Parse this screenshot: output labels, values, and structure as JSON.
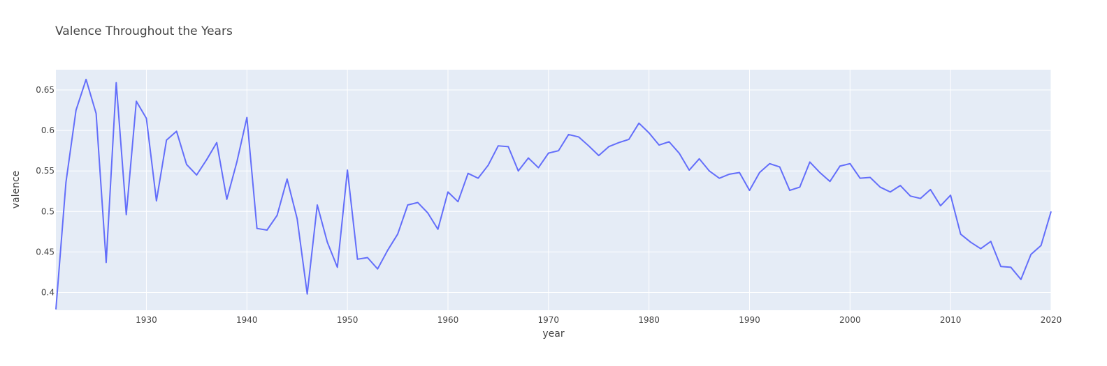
{
  "chart_data": {
    "type": "line",
    "title": "Valence Throughout the Years",
    "xlabel": "year",
    "ylabel": "valence",
    "xlim": [
      1921,
      2020
    ],
    "ylim": [
      0.378,
      0.675
    ],
    "x_ticks": [
      1930,
      1940,
      1950,
      1960,
      1970,
      1980,
      1990,
      2000,
      2010,
      2020
    ],
    "x_tick_labels": [
      "1930",
      "1940",
      "1950",
      "1960",
      "1970",
      "1980",
      "1990",
      "2000",
      "2010",
      "2020"
    ],
    "y_ticks": [
      0.4,
      0.45,
      0.5,
      0.55,
      0.6,
      0.65
    ],
    "y_tick_labels": [
      "0.4",
      "0.45",
      "0.5",
      "0.55",
      "0.6",
      "0.65"
    ],
    "grid": true,
    "colors": {
      "line": "#636efa",
      "plot_bg": "#e5ecf6",
      "grid": "#ffffff",
      "paper_bg": "#ffffff"
    },
    "series": [
      {
        "name": "valence",
        "x": [
          1921,
          1922,
          1923,
          1924,
          1925,
          1926,
          1927,
          1928,
          1929,
          1930,
          1931,
          1932,
          1933,
          1934,
          1935,
          1936,
          1937,
          1938,
          1939,
          1940,
          1941,
          1942,
          1943,
          1944,
          1945,
          1946,
          1947,
          1948,
          1949,
          1950,
          1951,
          1952,
          1953,
          1954,
          1955,
          1956,
          1957,
          1958,
          1959,
          1960,
          1961,
          1962,
          1963,
          1964,
          1965,
          1966,
          1967,
          1968,
          1969,
          1970,
          1971,
          1972,
          1973,
          1974,
          1975,
          1976,
          1977,
          1978,
          1979,
          1980,
          1981,
          1982,
          1983,
          1984,
          1985,
          1986,
          1987,
          1988,
          1989,
          1990,
          1991,
          1992,
          1993,
          1994,
          1995,
          1996,
          1997,
          1998,
          1999,
          2000,
          2001,
          2002,
          2003,
          2004,
          2005,
          2006,
          2007,
          2008,
          2009,
          2010,
          2011,
          2012,
          2013,
          2014,
          2015,
          2016,
          2017,
          2018,
          2019,
          2020
        ],
        "values": [
          0.379,
          0.536,
          0.625,
          0.663,
          0.621,
          0.437,
          0.659,
          0.496,
          0.636,
          0.615,
          0.513,
          0.588,
          0.599,
          0.558,
          0.545,
          0.564,
          0.585,
          0.515,
          0.561,
          0.616,
          0.479,
          0.477,
          0.495,
          0.54,
          0.491,
          0.398,
          0.508,
          0.462,
          0.431,
          0.551,
          0.441,
          0.443,
          0.429,
          0.452,
          0.472,
          0.508,
          0.511,
          0.498,
          0.478,
          0.524,
          0.512,
          0.547,
          0.541,
          0.557,
          0.581,
          0.58,
          0.55,
          0.566,
          0.554,
          0.572,
          0.575,
          0.595,
          0.592,
          0.581,
          0.569,
          0.58,
          0.585,
          0.589,
          0.609,
          0.597,
          0.582,
          0.586,
          0.572,
          0.551,
          0.565,
          0.55,
          0.541,
          0.546,
          0.548,
          0.526,
          0.548,
          0.559,
          0.555,
          0.526,
          0.53,
          0.561,
          0.548,
          0.537,
          0.556,
          0.559,
          0.541,
          0.542,
          0.53,
          0.524,
          0.532,
          0.519,
          0.516,
          0.527,
          0.507,
          0.52,
          0.472,
          0.462,
          0.454,
          0.463,
          0.432,
          0.431,
          0.416,
          0.447,
          0.458,
          0.5
        ]
      }
    ]
  }
}
